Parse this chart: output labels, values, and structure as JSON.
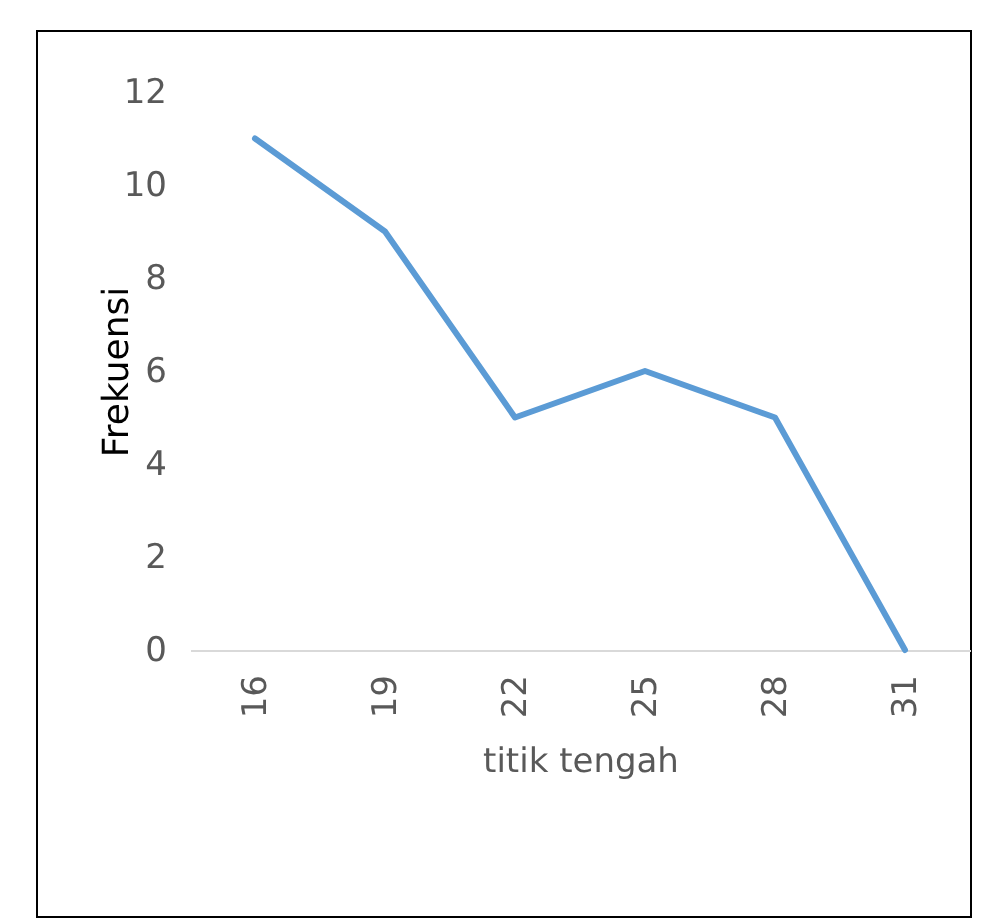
{
  "chart_data": {
    "type": "line",
    "xlabel": "titik tengah",
    "ylabel": "Frekuensi",
    "categories": [
      "16",
      "19",
      "22",
      "25",
      "28",
      "31"
    ],
    "series": [
      {
        "color": "#5b9bd5",
        "values": [
          11,
          9,
          5,
          6,
          5,
          0
        ]
      }
    ],
    "ylim": [
      0,
      12
    ],
    "yticks": [
      0,
      2,
      4,
      6,
      8,
      10,
      12
    ],
    "grid": false,
    "legend": false,
    "marker": "none",
    "line_style": "solid"
  }
}
